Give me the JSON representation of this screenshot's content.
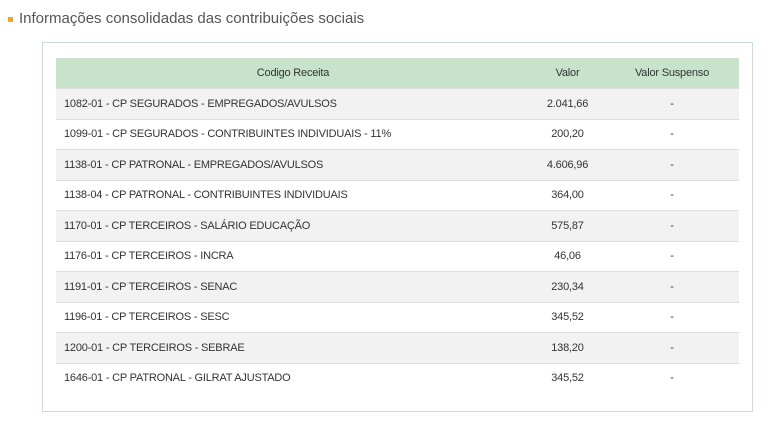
{
  "header": {
    "title": "Informações consolidadas das contribuições sociais"
  },
  "table": {
    "columns": [
      "Codigo Receita",
      "Valor",
      "Valor Suspenso"
    ],
    "rows": [
      [
        "1082-01 - CP SEGURADOS - EMPREGADOS/AVULSOS",
        "2.041,66",
        "-"
      ],
      [
        "1099-01 - CP SEGURADOS - CONTRIBUINTES INDIVIDUAIS - 11%",
        "200,20",
        "-"
      ],
      [
        "1138-01 - CP PATRONAL - EMPREGADOS/AVULSOS",
        "4.606,96",
        "-"
      ],
      [
        "1138-04 - CP PATRONAL - CONTRIBUINTES INDIVIDUAIS",
        "364,00",
        "-"
      ],
      [
        "1170-01 - CP TERCEIROS - SALÁRIO EDUCAÇÃO",
        "575,87",
        "-"
      ],
      [
        "1176-01 - CP TERCEIROS - INCRA",
        "46,06",
        "-"
      ],
      [
        "1191-01 - CP TERCEIROS - SENAC",
        "230,34",
        "-"
      ],
      [
        "1196-01 - CP TERCEIROS - SESC",
        "345,52",
        "-"
      ],
      [
        "1200-01 - CP TERCEIROS - SEBRAE",
        "138,20",
        "-"
      ],
      [
        "1646-01 - CP PATRONAL - GILRAT AJUSTADO",
        "345,52",
        "-"
      ]
    ]
  }
}
